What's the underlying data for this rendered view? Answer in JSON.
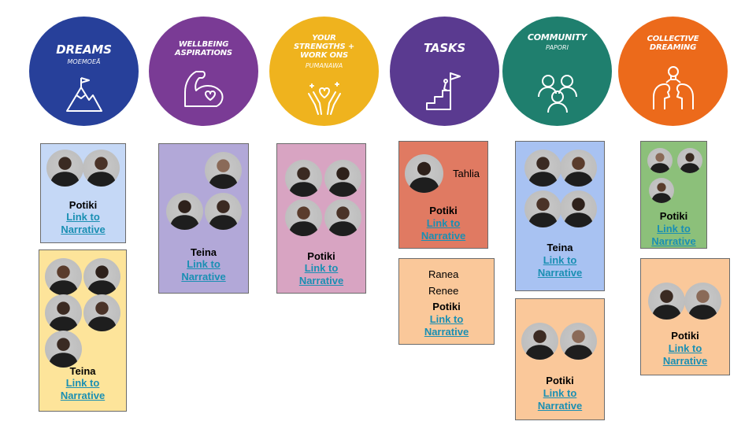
{
  "colors": {
    "dreams": "#27409a",
    "wellbeing": "#7a3b95",
    "strengths": "#efb31e",
    "tasks": "#5a3a90",
    "community": "#1f7f6e",
    "collective": "#ec6a1b",
    "link": "#1a8fb3"
  },
  "headers": {
    "dreams": {
      "title": "DREAMS",
      "subtitle": "MOEMOEĀ",
      "icon": "mountain-flag-icon"
    },
    "wellbeing": {
      "title": "WELLBEING\nASPIRATIONS",
      "icon": "flexed-arm-heart-icon"
    },
    "strengths": {
      "title": "YOUR\nSTRENGTHS +\nWORK ONS",
      "subtitle": "PUMANAWA",
      "icon": "hands-heart-icon"
    },
    "tasks": {
      "title": "TASKS",
      "icon": "stairs-flag-icon"
    },
    "community": {
      "title": "COMMUNITY",
      "subtitle": "PAPORI",
      "icon": "people-group-icon"
    },
    "collective": {
      "title": "COLLECTIVE\nDREAMING",
      "icon": "shared-idea-icon"
    }
  },
  "cards": {
    "dreams_potiki": {
      "name": "Potiki",
      "link": "Link to\nNarrative"
    },
    "dreams_teina": {
      "name": "Teina",
      "link": "Link to\nNarrative"
    },
    "wellbeing_teina": {
      "name": "Teina",
      "link": "Link to\nNarrative"
    },
    "strengths_potiki": {
      "name": "Potiki",
      "link": "Link to\nNarrative"
    },
    "tasks_tahlia": {
      "label": "Tahlia",
      "name": "Potiki",
      "link": "Link to\nNarrative"
    },
    "tasks_ranea": {
      "line1": "Ranea",
      "line2": "Renee",
      "name": "Potiki",
      "link": "Link to\nNarrative"
    },
    "community_teina": {
      "name": "Teina",
      "link": "Link to\nNarrative"
    },
    "community_potiki": {
      "name": "Potiki",
      "link": "Link to\nNarrative"
    },
    "collective_potiki_1": {
      "name": "Potiki",
      "link": "Link to\nNarrative"
    },
    "collective_potiki_2": {
      "name": "Potiki",
      "link": "Link to\nNarrative"
    }
  }
}
